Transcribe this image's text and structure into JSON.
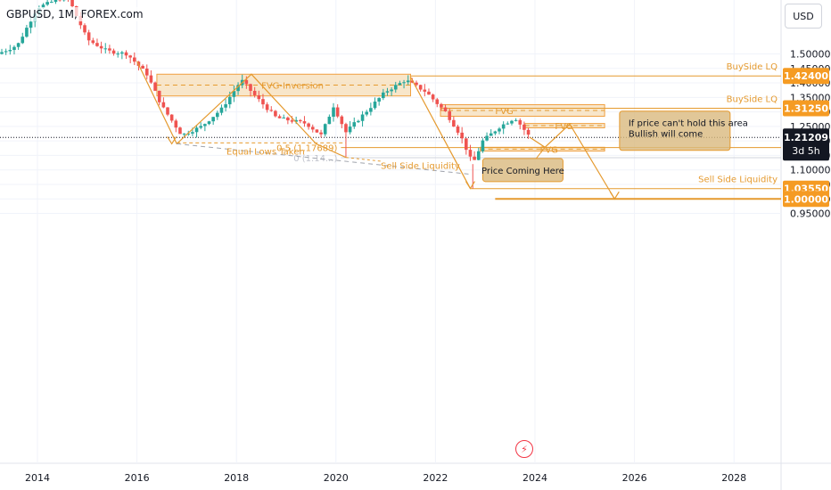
{
  "header": {
    "title": "GBPUSD, 1M, FOREX.com"
  },
  "currency_button": "USD",
  "alert_icon": "lightning-icon",
  "colors": {
    "up": "#26a69a",
    "down": "#ef5350",
    "zone_fill": "#f5deb8",
    "zone_border": "#f0a040",
    "annotation_orange": "#e59a2f",
    "label_box": "#d9b97e",
    "price_tag": "#f59b23",
    "current_price_tag": "#131722",
    "grid": "#f0f3fa"
  },
  "chart_data": {
    "type": "candlestick",
    "symbol": "GBPUSD",
    "timeframe": "1M",
    "xlabel": "",
    "ylabel": "",
    "x_ticks": [
      "2014",
      "2016",
      "2018",
      "2020",
      "2022",
      "2024",
      "2026",
      "2028"
    ],
    "y_ticks": [
      "0.95000",
      "1.00000",
      "1.05000",
      "1.10000",
      "1.15000",
      "1.20000",
      "1.25000",
      "1.30000",
      "1.35000",
      "1.40000",
      "1.45000",
      "1.50000"
    ],
    "y_range": [
      0.95,
      1.52
    ],
    "x_range": [
      2013.2,
      2029.0
    ],
    "candles_ohlc_samples": [
      {
        "t": 2013.5,
        "o": 1.52,
        "h": 1.55,
        "l": 1.48,
        "c": 1.51
      },
      {
        "t": 2015.0,
        "o": 1.55,
        "h": 1.58,
        "l": 1.5,
        "c": 1.53
      },
      {
        "t": 2015.8,
        "o": 1.51,
        "h": 1.53,
        "l": 1.46,
        "c": 1.47
      },
      {
        "t": 2016.4,
        "o": 1.44,
        "h": 1.47,
        "l": 1.32,
        "c": 1.33
      },
      {
        "t": 2016.8,
        "o": 1.25,
        "h": 1.27,
        "l": 1.19,
        "c": 1.24
      },
      {
        "t": 2017.8,
        "o": 1.32,
        "h": 1.36,
        "l": 1.3,
        "c": 1.35
      },
      {
        "t": 2018.2,
        "o": 1.4,
        "h": 1.43,
        "l": 1.37,
        "c": 1.41
      },
      {
        "t": 2019.0,
        "o": 1.28,
        "h": 1.29,
        "l": 1.25,
        "c": 1.27
      },
      {
        "t": 2019.7,
        "o": 1.21,
        "h": 1.24,
        "l": 1.19,
        "c": 1.23
      },
      {
        "t": 2020.2,
        "o": 1.3,
        "h": 1.32,
        "l": 1.14,
        "c": 1.24
      },
      {
        "t": 2021.2,
        "o": 1.38,
        "h": 1.42,
        "l": 1.36,
        "c": 1.4
      },
      {
        "t": 2022.3,
        "o": 1.26,
        "h": 1.27,
        "l": 1.18,
        "c": 1.21
      },
      {
        "t": 2022.75,
        "o": 1.16,
        "h": 1.17,
        "l": 1.036,
        "c": 1.11
      },
      {
        "t": 2023.6,
        "o": 1.28,
        "h": 1.31,
        "l": 1.25,
        "c": 1.27
      },
      {
        "t": 2023.9,
        "o": 1.24,
        "h": 1.25,
        "l": 1.21,
        "c": 1.212
      }
    ],
    "current_price": "1.21209",
    "countdown": "3d 5h",
    "price_levels": [
      {
        "label": "BuySide LQ",
        "price": "1.42400"
      },
      {
        "label": "BuySide LQ",
        "price": "1.31250"
      },
      {
        "label": "Sell Side Liquidity",
        "price": "1.03550"
      },
      {
        "label": "",
        "price": "1.00000"
      }
    ],
    "zones": [
      {
        "label": "FVG-Inversion",
        "from": 2016.4,
        "to": 2021.5,
        "low": 1.355,
        "high": 1.43
      },
      {
        "label": "FVG",
        "from": 2022.1,
        "to": 2025.4,
        "low": 1.285,
        "high": 1.325
      },
      {
        "label": "FVG",
        "from": 2023.8,
        "to": 2025.4,
        "low": 1.245,
        "high": 1.26
      },
      {
        "label": "FVG",
        "from": 2022.9,
        "to": 2025.4,
        "low": 1.165,
        "high": 1.178
      }
    ],
    "annotations": {
      "equal_lows": "Equal Lows Taken",
      "fib_05": "0.5 (1.17689)",
      "fib_0": "0 (1.14...)",
      "sell_side": "Sell Side Liquidity",
      "price_coming": "Price Coming Here",
      "if_price_line1": "If price can't hold this area",
      "if_price_line2": "Bullish will come"
    }
  }
}
